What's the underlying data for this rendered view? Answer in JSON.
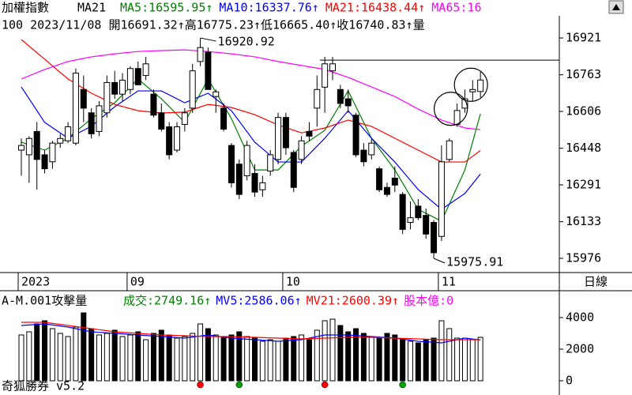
{
  "chart_data": {
    "type": "candlestick",
    "header": {
      "name": "加權指數",
      "mode": "MA21",
      "ma_labels": [
        {
          "text": "MA5:16595.95↑",
          "color": "#008000"
        },
        {
          "text": "MA10:16337.76↑",
          "color": "#0000ff"
        },
        {
          "text": "MA21:16438.44↑",
          "color": "#ff0000"
        },
        {
          "text": "MA65:16",
          "color": "#ff00ff"
        }
      ],
      "quote": "100 2023/11/08 開16691.32↑高16775.23↑低16665.40↑收16740.83↑量"
    },
    "period": "日線",
    "categories": [
      "2023",
      null,
      null,
      null,
      null,
      null,
      null,
      null,
      null,
      null,
      null,
      null,
      null,
      null,
      "09",
      null,
      null,
      null,
      null,
      null,
      null,
      null,
      null,
      null,
      null,
      null,
      null,
      null,
      null,
      null,
      null,
      null,
      null,
      null,
      "10",
      null,
      null,
      null,
      null,
      null,
      null,
      null,
      null,
      null,
      null,
      null,
      null,
      null,
      null,
      null,
      null,
      null,
      null,
      null,
      "11",
      null,
      null,
      null,
      null,
      null
    ],
    "open": [
      16440,
      16420,
      16520,
      16420,
      16390,
      16470,
      16480,
      16470,
      16700,
      16600,
      16520,
      16600,
      16730,
      16680,
      16700,
      16790,
      16760,
      16680,
      16600,
      16540,
      16440,
      16550,
      16620,
      16820,
      16860,
      16670,
      16620,
      16460,
      16380,
      16330,
      16340,
      16270,
      16350,
      16400,
      16580,
      16430,
      16400,
      16520,
      16620,
      16710,
      16780,
      16700,
      16660,
      16590,
      16440,
      16420,
      16360,
      16280,
      16320,
      16250,
      16130,
      16200,
      16160,
      16130,
      16070,
      16400,
      16550,
      16620,
      16690,
      16691.32
    ],
    "high": [
      16490,
      16500,
      16560,
      16440,
      16480,
      16510,
      16560,
      16790,
      16760,
      16620,
      16650,
      16760,
      16780,
      16770,
      16800,
      16820,
      16840,
      16700,
      16640,
      16560,
      16560,
      16620,
      16810,
      16920.92,
      16880,
      16700,
      16640,
      16470,
      16400,
      16480,
      16380,
      16330,
      16440,
      16600,
      16600,
      16440,
      16500,
      16560,
      16760,
      16840,
      16840,
      16720,
      16700,
      16600,
      16470,
      16490,
      16370,
      16300,
      16370,
      16260,
      16220,
      16230,
      16190,
      16140,
      16460,
      16490,
      16640,
      16700,
      16740,
      16775.23
    ],
    "low": [
      16330,
      16300,
      16270,
      16340,
      16360,
      16450,
      16470,
      16460,
      16560,
      16490,
      16500,
      16580,
      16660,
      16650,
      16680,
      16720,
      16740,
      16580,
      16520,
      16400,
      16430,
      16520,
      16600,
      16800,
      16700,
      16600,
      16520,
      16280,
      16230,
      16310,
      16240,
      16240,
      16330,
      16380,
      16420,
      16260,
      16380,
      16480,
      16540,
      16600,
      16740,
      16620,
      16600,
      16410,
      16370,
      16400,
      16260,
      16240,
      16260,
      16080,
      16100,
      16140,
      16060,
      15975.91,
      16050,
      16390,
      16540,
      16600,
      16650,
      16665.4
    ],
    "close": [
      16460,
      16490,
      16400,
      16360,
      16470,
      16490,
      16540,
      16770,
      16620,
      16510,
      16630,
      16730,
      16680,
      16740,
      16790,
      16720,
      16810,
      16590,
      16530,
      16420,
      16540,
      16600,
      16780,
      16880,
      16700,
      16690,
      16530,
      16300,
      16250,
      16460,
      16260,
      16300,
      16420,
      16580,
      16450,
      16280,
      16480,
      16500,
      16700,
      16810,
      16810,
      16640,
      16630,
      16420,
      16390,
      16470,
      16270,
      16250,
      16290,
      16100,
      16150,
      16150,
      16080,
      16000,
      16390,
      16480,
      16610,
      16660,
      16700,
      16740.83
    ],
    "ylim": [
      15915,
      17016
    ],
    "yticks": [
      16921,
      16763,
      16606,
      16448,
      16291,
      16133,
      15976
    ],
    "high_label": {
      "index": 23,
      "label": "16920.92"
    },
    "low_label": {
      "index": 53,
      "label": "15975.91"
    },
    "hline": {
      "value": 16826,
      "index": 39
    },
    "circles": [
      56,
      59
    ],
    "ma_x": [
      0,
      3,
      6,
      9,
      12,
      15,
      18,
      21,
      24,
      27,
      30,
      33,
      36,
      39,
      42,
      45,
      48,
      51,
      54,
      57,
      59
    ],
    "ma_series": [
      {
        "name": "MA5",
        "color": "#008000",
        "values": [
          16474,
          16440,
          16491,
          16575,
          16643,
          16745,
          16660,
          16559,
          16745,
          16575,
          16355,
          16355,
          16457,
          16525,
          16694,
          16491,
          16355,
          16186,
          16135,
          16355,
          16595.95
        ]
      },
      {
        "name": "MA10",
        "color": "#0000ff",
        "values": [
          16711,
          16559,
          16491,
          16542,
          16626,
          16694,
          16694,
          16643,
          16684,
          16609,
          16474,
          16389,
          16389,
          16491,
          16609,
          16491,
          16389,
          16271,
          16186,
          16254,
          16337.76
        ]
      },
      {
        "name": "MA21",
        "color": "#ff0000",
        "values": [
          16914,
          16830,
          16745,
          16684,
          16636,
          16609,
          16599,
          16603,
          16636,
          16623,
          16592,
          16548,
          16514,
          16535,
          16569,
          16542,
          16491,
          16440,
          16389,
          16389,
          16438.44
        ]
      },
      {
        "name": "MA65",
        "color": "#ff00ff",
        "values": [
          16745,
          16786,
          16820,
          16840,
          16853,
          16863,
          16867,
          16870,
          16863,
          16853,
          16840,
          16820,
          16803,
          16786,
          16752,
          16711,
          16670,
          16616,
          16569,
          16535,
          16528
        ]
      }
    ],
    "volume": {
      "title": "A-M.001攻擊量",
      "labels": [
        {
          "text": "成交:2749.16↑",
          "color": "#008000"
        },
        {
          "text": "MV5:2586.06↑",
          "color": "#0000ff"
        },
        {
          "text": "MV21:2600.39↑",
          "color": "#ff0000"
        },
        {
          "text": "股本億:0",
          "color": "#ff00ff"
        }
      ],
      "values": [
        2900,
        3100,
        3600,
        3800,
        3300,
        3000,
        2800,
        3400,
        4300,
        3300,
        2900,
        3000,
        3200,
        2800,
        2900,
        3100,
        2600,
        3000,
        3200,
        2900,
        2700,
        2800,
        3000,
        3600,
        3300,
        2900,
        2800,
        2900,
        3100,
        2800,
        2700,
        2500,
        2600,
        2500,
        2700,
        2800,
        2900,
        2600,
        3200,
        3800,
        3900,
        3500,
        3100,
        3300,
        3000,
        2800,
        2700,
        3000,
        2900,
        2600,
        2500,
        2400,
        2600,
        2700,
        3800,
        3300,
        2700,
        2700,
        2600,
        2749.16
      ],
      "ylim": [
        0,
        5500
      ],
      "yticks": [
        0,
        2000,
        4000
      ],
      "ma_series": [
        {
          "name": "MV5",
          "color": "#0000ff",
          "values": [
            3500,
            3600,
            3400,
            3100,
            3000,
            2900,
            2800,
            2700,
            2900,
            2700,
            2600,
            2500,
            2600,
            2900,
            2900,
            2800,
            2700,
            2500,
            2400,
            2700,
            2586.06
          ]
        },
        {
          "name": "MV21",
          "color": "#ff0000",
          "values": [
            3700,
            3700,
            3500,
            3300,
            3100,
            3000,
            2900,
            2850,
            2800,
            2800,
            2750,
            2700,
            2650,
            2700,
            2750,
            2750,
            2700,
            2650,
            2600,
            2600,
            2600.39
          ]
        }
      ],
      "signals": [
        {
          "index": 23,
          "color": "#ff0000"
        },
        {
          "index": 28,
          "color": "#00a000"
        },
        {
          "index": 39,
          "color": "#ff0000"
        },
        {
          "index": 49,
          "color": "#00a000"
        }
      ]
    },
    "footer": "奇狐勝券 v5.2"
  }
}
